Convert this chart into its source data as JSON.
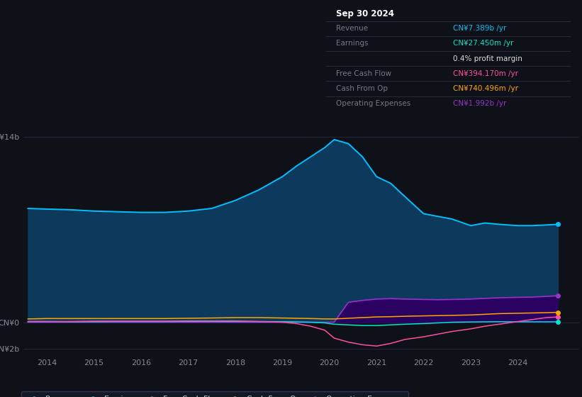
{
  "background_color": "#0e1117",
  "plot_bg_color": "#0e1117",
  "info_box_color": "#000000",
  "ylabel_top": "CN¥14b",
  "ylabel_zero": "CN¥0",
  "ylabel_neg": "-CN¥2b",
  "x_ticks": [
    2014,
    2015,
    2016,
    2017,
    2018,
    2019,
    2020,
    2021,
    2022,
    2023,
    2024
  ],
  "x": [
    2013.6,
    2014.0,
    2014.5,
    2015.0,
    2015.5,
    2016.0,
    2016.5,
    2017.0,
    2017.5,
    2018.0,
    2018.5,
    2019.0,
    2019.3,
    2019.6,
    2019.9,
    2020.1,
    2020.4,
    2020.7,
    2021.0,
    2021.3,
    2021.6,
    2022.0,
    2022.3,
    2022.6,
    2023.0,
    2023.3,
    2023.6,
    2024.0,
    2024.3,
    2024.6,
    2024.85
  ],
  "revenue": [
    8.6,
    8.55,
    8.5,
    8.4,
    8.35,
    8.3,
    8.3,
    8.4,
    8.6,
    9.2,
    10.0,
    11.0,
    11.8,
    12.5,
    13.2,
    13.8,
    13.5,
    12.5,
    11.0,
    10.5,
    9.5,
    8.2,
    8.0,
    7.8,
    7.3,
    7.5,
    7.4,
    7.3,
    7.3,
    7.35,
    7.4
  ],
  "earnings": [
    0.05,
    0.05,
    0.04,
    0.04,
    0.05,
    0.05,
    0.05,
    0.06,
    0.06,
    0.06,
    0.05,
    0.04,
    0.02,
    0.0,
    -0.05,
    -0.15,
    -0.2,
    -0.25,
    -0.25,
    -0.2,
    -0.15,
    -0.1,
    -0.05,
    0.0,
    0.02,
    0.03,
    0.04,
    0.03,
    0.03,
    0.03,
    0.03
  ],
  "free_cash_flow": [
    0.05,
    0.05,
    0.05,
    0.08,
    0.08,
    0.08,
    0.08,
    0.1,
    0.1,
    0.1,
    0.05,
    0.0,
    -0.1,
    -0.3,
    -0.6,
    -1.2,
    -1.5,
    -1.7,
    -1.8,
    -1.6,
    -1.3,
    -1.1,
    -0.9,
    -0.7,
    -0.5,
    -0.3,
    -0.15,
    0.05,
    0.2,
    0.35,
    0.4
  ],
  "cash_from_op": [
    0.25,
    0.28,
    0.28,
    0.28,
    0.28,
    0.28,
    0.28,
    0.3,
    0.32,
    0.35,
    0.35,
    0.32,
    0.3,
    0.28,
    0.25,
    0.25,
    0.3,
    0.35,
    0.4,
    0.42,
    0.45,
    0.48,
    0.5,
    0.52,
    0.55,
    0.6,
    0.65,
    0.68,
    0.7,
    0.72,
    0.75
  ],
  "op_expenses": [
    0.0,
    0.0,
    0.0,
    0.0,
    0.0,
    0.0,
    0.0,
    0.0,
    0.0,
    0.0,
    0.0,
    0.0,
    0.0,
    0.0,
    0.0,
    0.0,
    1.5,
    1.65,
    1.75,
    1.78,
    1.75,
    1.72,
    1.7,
    1.72,
    1.75,
    1.8,
    1.85,
    1.88,
    1.9,
    1.95,
    2.0
  ],
  "revenue_color": "#00bfff",
  "earnings_color": "#00e5cc",
  "free_cash_flow_color": "#ff4fa0",
  "cash_from_op_color": "#ffa500",
  "op_expenses_color": "#9932cc",
  "revenue_fill": "#0d3a5c",
  "op_expenses_fill": "#2a0060",
  "ylim": [
    -2.5,
    15.5
  ],
  "xlim": [
    2013.5,
    2025.3
  ],
  "info_box": {
    "date": "Sep 30 2024",
    "rows": [
      {
        "label": "Revenue",
        "value": "CN¥7.389b /yr",
        "value_color": "#00bfff"
      },
      {
        "label": "Earnings",
        "value": "CN¥27.450m /yr",
        "value_color": "#00e5cc"
      },
      {
        "label": "",
        "value": "0.4% profit margin",
        "value_color": "#dddddd"
      },
      {
        "label": "Free Cash Flow",
        "value": "CN¥394.170m /yr",
        "value_color": "#ff4fa0"
      },
      {
        "label": "Cash From Op",
        "value": "CN¥740.496m /yr",
        "value_color": "#ffa500"
      },
      {
        "label": "Operating Expenses",
        "value": "CN¥1.992b /yr",
        "value_color": "#9932cc"
      }
    ]
  },
  "legend_items": [
    {
      "label": "Revenue",
      "color": "#00bfff"
    },
    {
      "label": "Earnings",
      "color": "#00e5cc"
    },
    {
      "label": "Free Cash Flow",
      "color": "#ff4fa0"
    },
    {
      "label": "Cash From Op",
      "color": "#ffa500"
    },
    {
      "label": "Operating Expenses",
      "color": "#9932cc"
    }
  ],
  "grid_color": "#2a2a3e",
  "tick_color": "#888899",
  "label_color": "#888899"
}
